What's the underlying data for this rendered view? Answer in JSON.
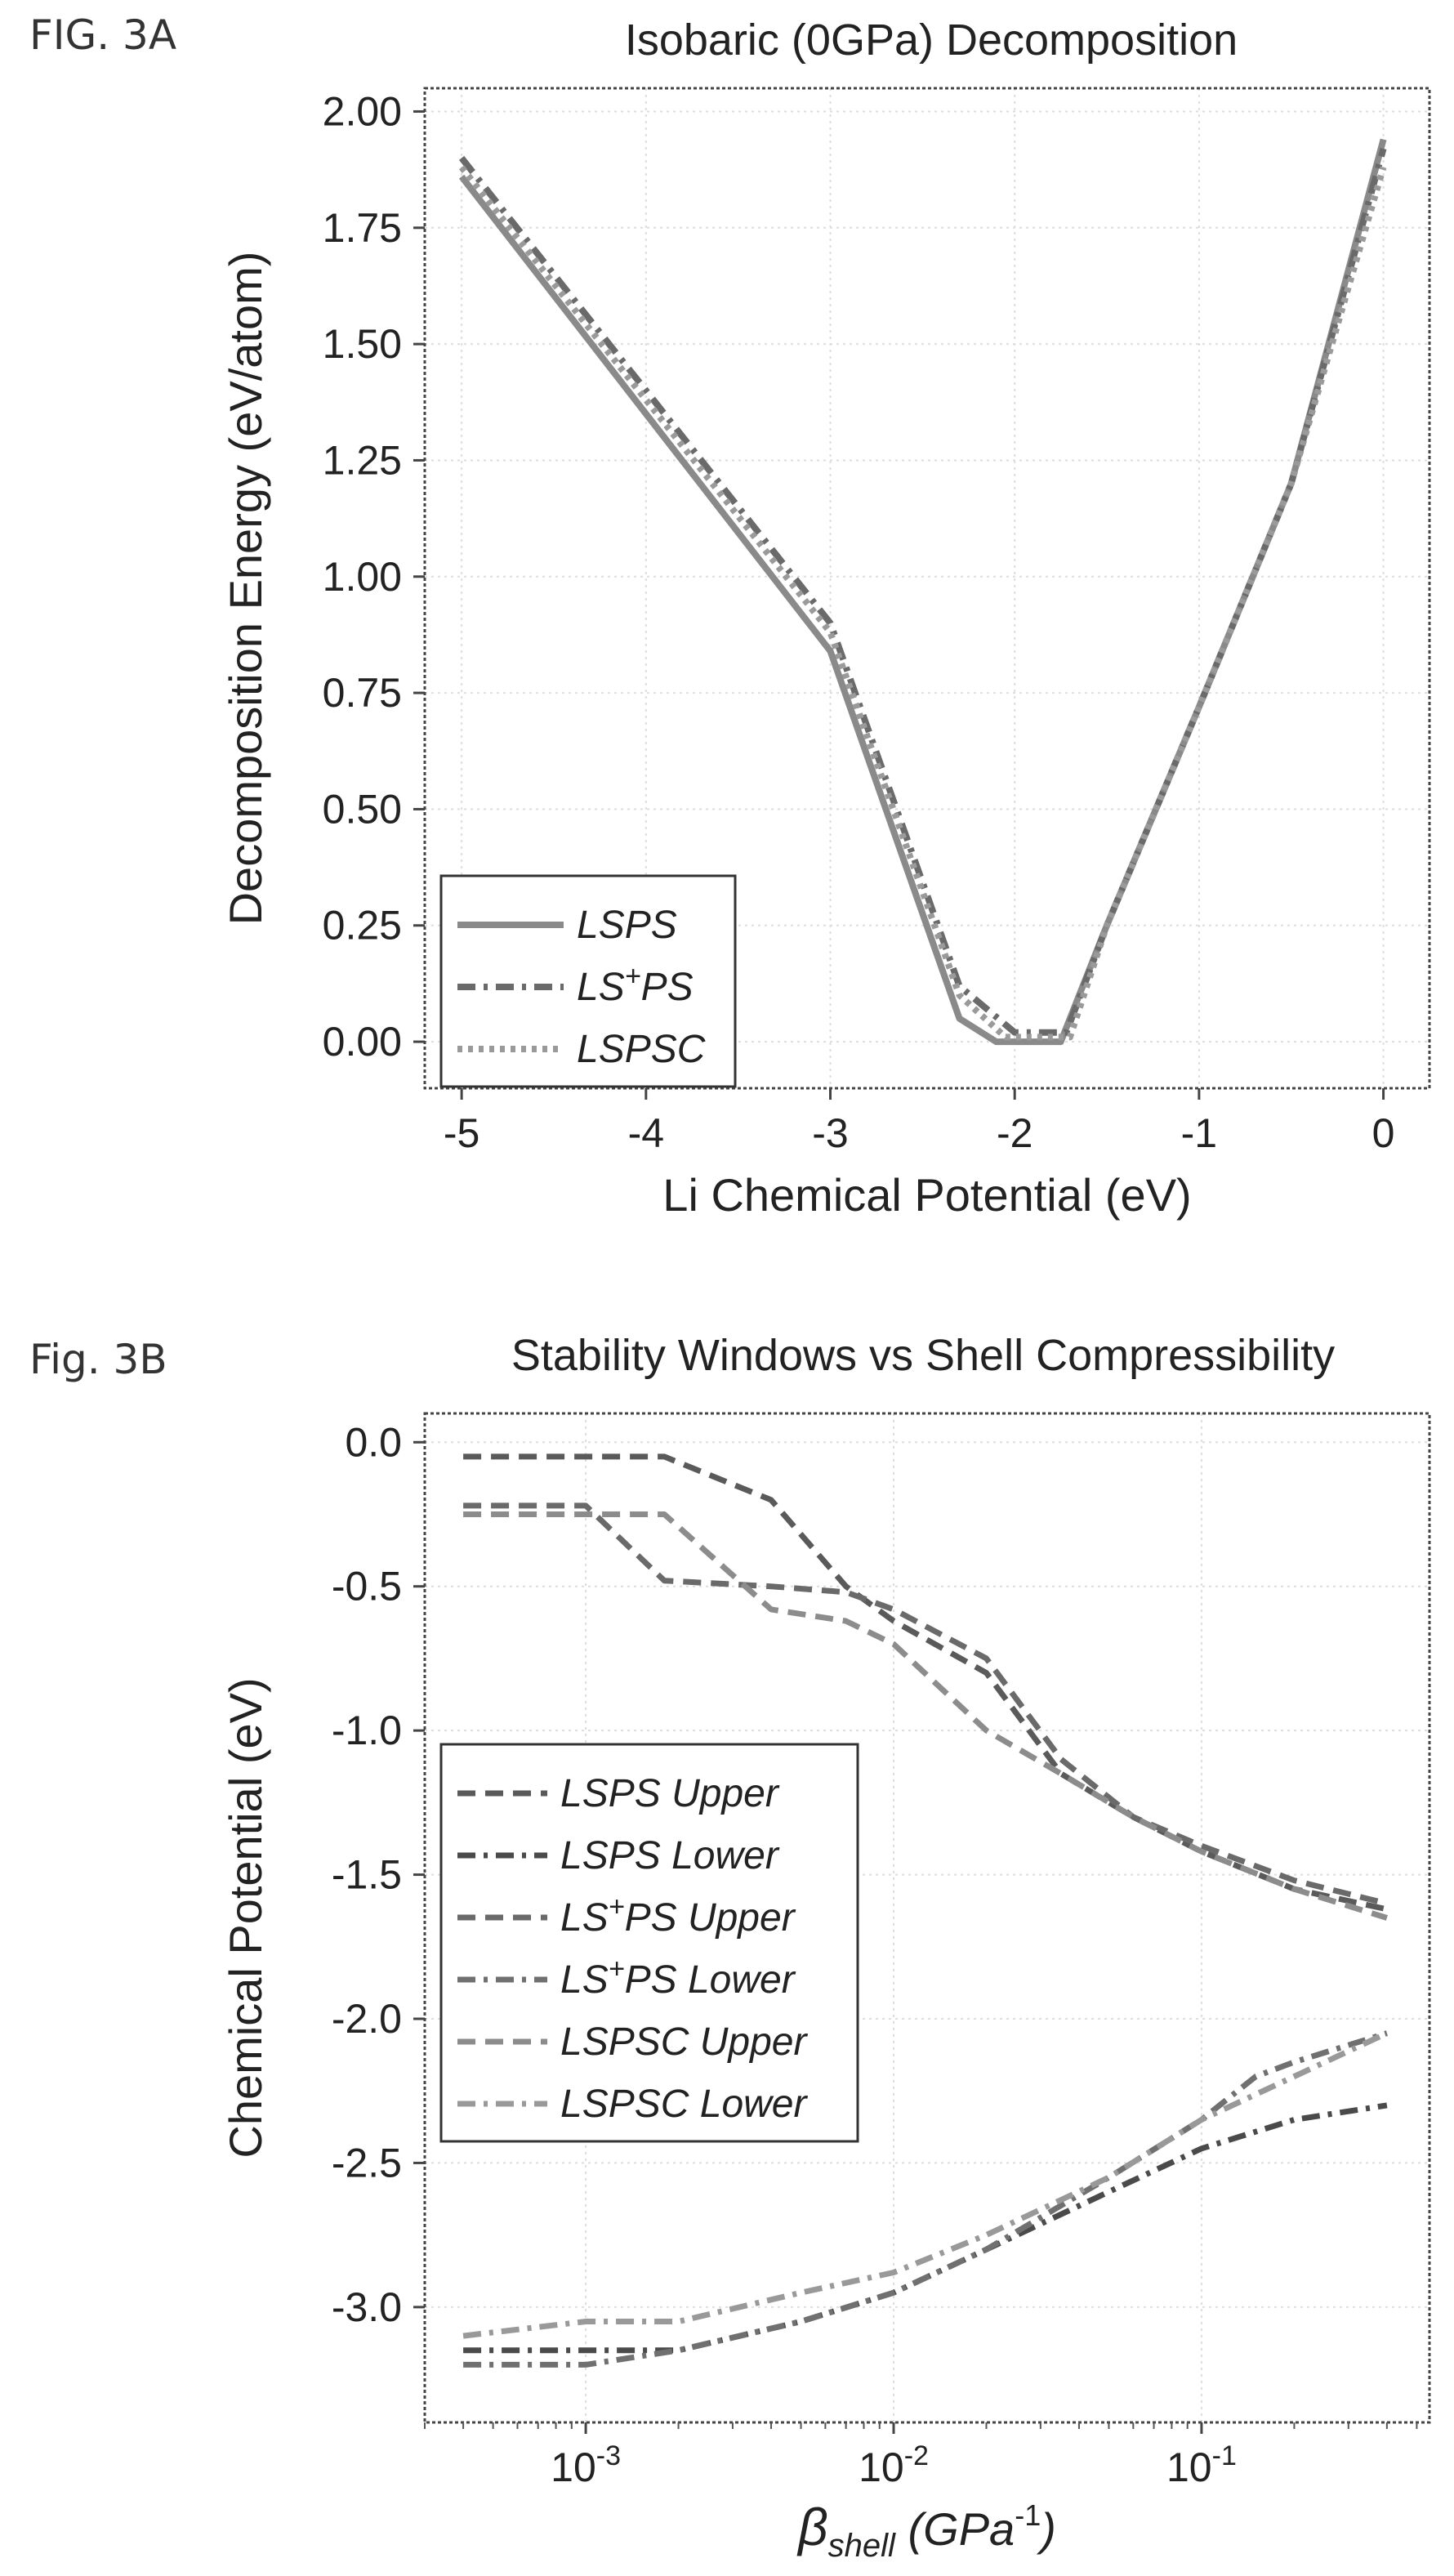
{
  "figure_a": {
    "fig_label": "FIG. 3A",
    "title": "Isobaric (0GPa) Decomposition",
    "xlabel": "Li Chemical Potential (eV)",
    "ylabel": "Decomposition Energy (eV/atom)"
  },
  "figure_b": {
    "fig_label": "Fig. 3B",
    "title": "Stability Windows vs Shell Compressibility",
    "xlabel": "βshell (GPa-1)",
    "ylabel": "Chemical Potential (eV)"
  },
  "chart_data": [
    {
      "type": "line",
      "title": "Isobaric (0GPa) Decomposition",
      "xlabel": "Li Chemical Potential (eV)",
      "ylabel": "Decomposition Energy (eV/atom)",
      "xlim": [
        -5.2,
        0.25
      ],
      "ylim": [
        -0.1,
        2.05
      ],
      "xticks": [
        -5,
        -4,
        -3,
        -2,
        -1,
        0
      ],
      "xtick_labels": [
        "-5",
        "-4",
        "-3",
        "-2",
        "-1",
        "0"
      ],
      "yticks": [
        0,
        0.25,
        0.5,
        0.75,
        1.0,
        1.25,
        1.5,
        1.75,
        2.0
      ],
      "ytick_labels": [
        "0.00",
        "0.25",
        "0.50",
        "0.75",
        "1.00",
        "1.25",
        "1.50",
        "1.75",
        "2.00"
      ],
      "grid": true,
      "legend_position": "lower-left",
      "series": [
        {
          "name": "LSPS",
          "style": "solid",
          "color": "#8a8a8a",
          "x": [
            -5,
            -4,
            -3,
            -2.3,
            -2.1,
            -1.75,
            -1.5,
            -1,
            -0.5,
            0
          ],
          "y": [
            1.86,
            1.35,
            0.84,
            0.05,
            0.0,
            0.0,
            0.25,
            0.72,
            1.2,
            1.94
          ]
        },
        {
          "name": "LS+PS",
          "style": "dashdot",
          "color": "#6a6a6a",
          "x": [
            -5,
            -4,
            -3,
            -2.3,
            -2.0,
            -1.72,
            -1.5,
            -1,
            -0.5,
            0
          ],
          "y": [
            1.9,
            1.4,
            0.9,
            0.12,
            0.02,
            0.02,
            0.25,
            0.72,
            1.2,
            1.92
          ]
        },
        {
          "name": "LSPSC",
          "style": "dotted",
          "color": "#9a9a9a",
          "x": [
            -5,
            -4,
            -3,
            -2.3,
            -2.05,
            -1.7,
            -1.5,
            -1,
            -0.5,
            0
          ],
          "y": [
            1.88,
            1.38,
            0.88,
            0.1,
            0.01,
            0.01,
            0.25,
            0.72,
            1.2,
            1.88
          ]
        }
      ]
    },
    {
      "type": "line",
      "title": "Stability Windows vs Shell Compressibility",
      "xlabel": "βshell (GPa-1)",
      "ylabel": "Chemical Potential (eV)",
      "xscale": "log",
      "xlim": [
        0.0003,
        0.55
      ],
      "ylim": [
        -3.4,
        0.1
      ],
      "xticks": [
        0.001,
        0.01,
        0.1
      ],
      "xtick_labels": [
        "10-3",
        "10-2",
        "10-1"
      ],
      "yticks": [
        0,
        -0.5,
        -1.0,
        -1.5,
        -2.0,
        -2.5,
        -3.0
      ],
      "ytick_labels": [
        "0.0",
        "-0.5",
        "-1.0",
        "-1.5",
        "-2.0",
        "-2.5",
        "-3.0"
      ],
      "grid": true,
      "legend_position": "center-left",
      "series": [
        {
          "name": "LSPS Upper",
          "style": "dashed",
          "color": "#5a5a5a",
          "x": [
            0.0004,
            0.001,
            0.0018,
            0.004,
            0.007,
            0.01,
            0.02,
            0.035,
            0.06,
            0.1,
            0.2,
            0.4
          ],
          "y": [
            -0.05,
            -0.05,
            -0.05,
            -0.2,
            -0.5,
            -0.62,
            -0.8,
            -1.15,
            -1.3,
            -1.42,
            -1.55,
            -1.62
          ]
        },
        {
          "name": "LSPS Lower",
          "style": "dashdot",
          "color": "#4a4a4a",
          "x": [
            0.0004,
            0.001,
            0.002,
            0.005,
            0.01,
            0.02,
            0.05,
            0.1,
            0.2,
            0.4
          ],
          "y": [
            -3.15,
            -3.15,
            -3.15,
            -3.05,
            -2.95,
            -2.8,
            -2.6,
            -2.45,
            -2.35,
            -2.3
          ]
        },
        {
          "name": "LS+PS Upper",
          "style": "dashed",
          "color": "#6a6a6a",
          "x": [
            0.0004,
            0.001,
            0.0018,
            0.004,
            0.007,
            0.01,
            0.02,
            0.035,
            0.06,
            0.1,
            0.2,
            0.4
          ],
          "y": [
            -0.22,
            -0.22,
            -0.48,
            -0.5,
            -0.52,
            -0.58,
            -0.75,
            -1.1,
            -1.3,
            -1.4,
            -1.52,
            -1.6
          ]
        },
        {
          "name": "LS+PS Lower",
          "style": "dashdot",
          "color": "#707070",
          "x": [
            0.0004,
            0.001,
            0.002,
            0.005,
            0.01,
            0.02,
            0.05,
            0.1,
            0.15,
            0.2,
            0.4
          ],
          "y": [
            -3.2,
            -3.2,
            -3.15,
            -3.05,
            -2.95,
            -2.8,
            -2.55,
            -2.35,
            -2.2,
            -2.15,
            -2.05
          ]
        },
        {
          "name": "LSPSC Upper",
          "style": "dashed",
          "color": "#8c8c8c",
          "x": [
            0.0004,
            0.001,
            0.0018,
            0.004,
            0.007,
            0.01,
            0.02,
            0.035,
            0.06,
            0.1,
            0.2,
            0.4
          ],
          "y": [
            -0.25,
            -0.25,
            -0.25,
            -0.58,
            -0.62,
            -0.7,
            -1.0,
            -1.15,
            -1.3,
            -1.42,
            -1.55,
            -1.65
          ]
        },
        {
          "name": "LSPSC Lower",
          "style": "dashdot",
          "color": "#999999",
          "x": [
            0.0004,
            0.001,
            0.002,
            0.005,
            0.01,
            0.02,
            0.05,
            0.1,
            0.2,
            0.4
          ],
          "y": [
            -3.1,
            -3.05,
            -3.05,
            -2.95,
            -2.88,
            -2.75,
            -2.55,
            -2.35,
            -2.2,
            -2.05
          ]
        }
      ]
    }
  ]
}
